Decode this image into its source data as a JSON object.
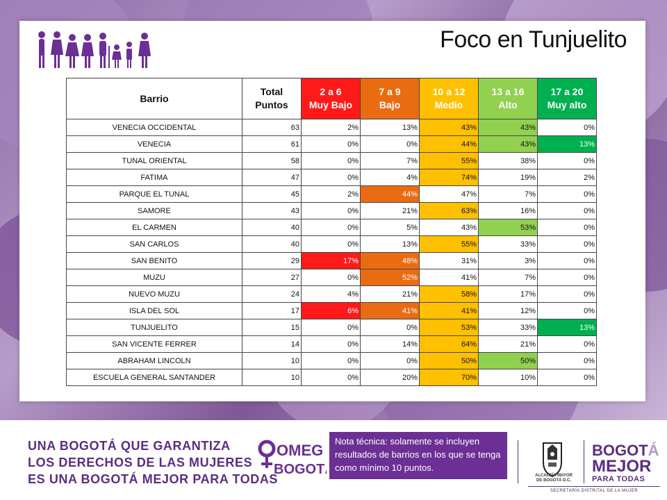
{
  "page": {
    "title": "Foco en Tunjuelito"
  },
  "table": {
    "headers": [
      {
        "line1": "Barrio",
        "line2": ""
      },
      {
        "line1": "Total",
        "line2": "Puntos"
      },
      {
        "line1": "2 a 6",
        "line2": "Muy Bajo"
      },
      {
        "line1": "7 a 9",
        "line2": "Bajo"
      },
      {
        "line1": "10 a 12",
        "line2": "Medio"
      },
      {
        "line1": "13 a 16",
        "line2": "Alto"
      },
      {
        "line1": "17 a 20",
        "line2": "Muy alto"
      }
    ],
    "header_colors": [
      "#ffffff",
      "#ffffff",
      "#ff1a1a",
      "#e96c12",
      "#ffc000",
      "#92d050",
      "#00b050"
    ],
    "rows": [
      {
        "barrio": "VENECIA OCCIDENTAL",
        "total": "63",
        "vals": [
          "2%",
          "13%",
          "43%",
          "43%",
          "0%"
        ],
        "hl": [
          null,
          null,
          "yellow",
          "lgreen",
          null
        ]
      },
      {
        "barrio": "VENECIA",
        "total": "61",
        "vals": [
          "0%",
          "0%",
          "44%",
          "43%",
          "13%"
        ],
        "hl": [
          null,
          null,
          "yellow",
          "lgreen",
          "dgreen"
        ]
      },
      {
        "barrio": "TUNAL ORIENTAL",
        "total": "58",
        "vals": [
          "0%",
          "7%",
          "55%",
          "38%",
          "0%"
        ],
        "hl": [
          null,
          null,
          "yellow",
          null,
          null
        ]
      },
      {
        "barrio": "FATIMA",
        "total": "47",
        "vals": [
          "0%",
          "4%",
          "74%",
          "19%",
          "2%"
        ],
        "hl": [
          null,
          null,
          "yellow",
          null,
          null
        ]
      },
      {
        "barrio": "PARQUE EL TUNAL",
        "total": "45",
        "vals": [
          "2%",
          "44%",
          "47%",
          "7%",
          "0%"
        ],
        "hl": [
          null,
          "orange",
          null,
          null,
          null
        ]
      },
      {
        "barrio": "SAMORE",
        "total": "43",
        "vals": [
          "0%",
          "21%",
          "63%",
          "16%",
          "0%"
        ],
        "hl": [
          null,
          null,
          "yellow",
          null,
          null
        ]
      },
      {
        "barrio": "EL CARMEN",
        "total": "40",
        "vals": [
          "0%",
          "5%",
          "43%",
          "53%",
          "0%"
        ],
        "hl": [
          null,
          null,
          null,
          "lgreen",
          null
        ]
      },
      {
        "barrio": "SAN CARLOS",
        "total": "40",
        "vals": [
          "0%",
          "13%",
          "55%",
          "33%",
          "0%"
        ],
        "hl": [
          null,
          null,
          "yellow",
          null,
          null
        ]
      },
      {
        "barrio": "SAN BENITO",
        "total": "29",
        "vals": [
          "17%",
          "48%",
          "31%",
          "3%",
          "0%"
        ],
        "hl": [
          "red",
          "orange",
          null,
          null,
          null
        ]
      },
      {
        "barrio": "MUZU",
        "total": "27",
        "vals": [
          "0%",
          "52%",
          "41%",
          "7%",
          "0%"
        ],
        "hl": [
          null,
          "orange",
          null,
          null,
          null
        ]
      },
      {
        "barrio": "NUEVO MUZU",
        "total": "24",
        "vals": [
          "4%",
          "21%",
          "58%",
          "17%",
          "0%"
        ],
        "hl": [
          null,
          null,
          "yellow",
          null,
          null
        ]
      },
      {
        "barrio": "ISLA DEL SOL",
        "total": "17",
        "vals": [
          "6%",
          "41%",
          "41%",
          "12%",
          "0%"
        ],
        "hl": [
          "red",
          "orange",
          "yellow",
          null,
          null
        ]
      },
      {
        "barrio": "TUNJUELITO",
        "total": "15",
        "vals": [
          "0%",
          "0%",
          "53%",
          "33%",
          "13%"
        ],
        "hl": [
          null,
          null,
          "yellow",
          null,
          "dgreen"
        ]
      },
      {
        "barrio": "SAN VICENTE FERRER",
        "total": "14",
        "vals": [
          "0%",
          "14%",
          "64%",
          "21%",
          "0%"
        ],
        "hl": [
          null,
          null,
          "yellow",
          null,
          null
        ]
      },
      {
        "barrio": "ABRAHAM LINCOLN",
        "total": "10",
        "vals": [
          "0%",
          "0%",
          "50%",
          "50%",
          "0%"
        ],
        "hl": [
          null,
          null,
          "yellow",
          "lgreen",
          null
        ]
      },
      {
        "barrio": "ESCUELA GENERAL SANTANDER",
        "total": "10",
        "vals": [
          "0%",
          "20%",
          "70%",
          "10%",
          "0%"
        ],
        "hl": [
          null,
          null,
          "yellow",
          null,
          null
        ]
      }
    ]
  },
  "footer": {
    "slogan": [
      "UNA BOGOTÁ QUE GARANTIZA",
      "LOS DERECHOS DE LAS MUJERES",
      "ES UNA BOGOTÁ MEJOR PARA TODAS"
    ],
    "omeg_logo": {
      "line1": "OMEG",
      "line2": "BOGOTÁ"
    },
    "note": "Nota técnica: solamente se incluyen resultados de barrios en los que se tenga como mínimo 10 puntos.",
    "alcaldia": {
      "line1": "ALCALDÍA MAYOR",
      "line2": "DE BOGOTÁ D.C."
    },
    "bogota_brand": {
      "line1_a": "BOGOT",
      "line1_b": "Á",
      "line2": "MEJOR",
      "line3": "PARA TODAS"
    },
    "secretaria": "SECRETARÍA DISTRITAL DE LA MUJER"
  },
  "colors": {
    "purple": "#6b2f95",
    "red": "#ff1a1a",
    "orange": "#e96c12",
    "yellow": "#ffc000",
    "lgreen": "#92d050",
    "dgreen": "#00b050"
  }
}
